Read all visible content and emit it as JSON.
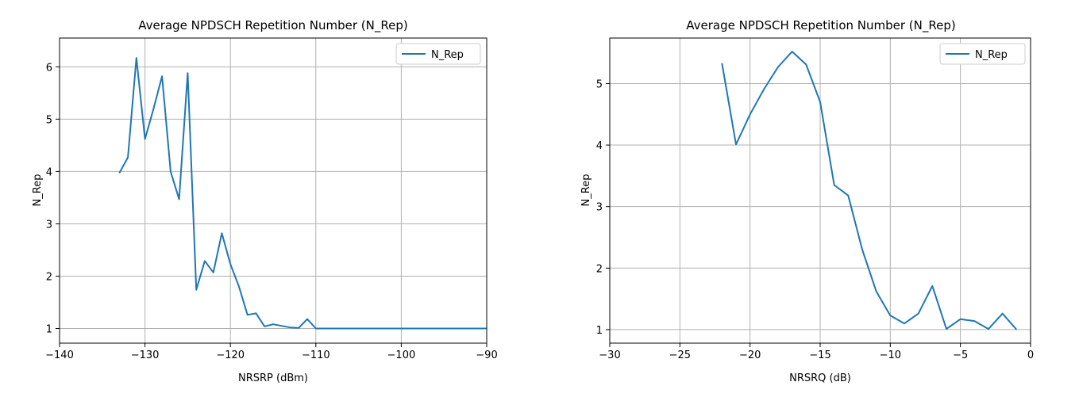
{
  "colors": {
    "series": "#1f77b4",
    "grid": "#b0b0b0"
  },
  "chart_data": [
    {
      "type": "line",
      "title": "Average NPDSCH Repetition Number (N_Rep)",
      "xlabel": "NRSRP (dBm)",
      "ylabel": "N_Rep",
      "xlim": [
        -140,
        -90
      ],
      "ylim": [
        0.72,
        6.55
      ],
      "xticks": [
        -140,
        -130,
        -120,
        -110,
        -100,
        -90
      ],
      "xtick_labels": [
        "−140",
        "−130",
        "−120",
        "−110",
        "−100",
        "−90"
      ],
      "yticks": [
        1,
        2,
        3,
        4,
        5,
        6
      ],
      "ytick_labels": [
        "1",
        "2",
        "3",
        "4",
        "5",
        "6"
      ],
      "grid": true,
      "legend_position": "top-right",
      "series": [
        {
          "name": "N_Rep",
          "x": [
            -133,
            -132,
            -131,
            -130,
            -129,
            -128,
            -127,
            -126,
            -125,
            -124,
            -123,
            -122,
            -121,
            -120,
            -119,
            -118,
            -117,
            -116,
            -115,
            -114,
            -113,
            -112,
            -111,
            -110,
            -109,
            -108,
            -107,
            -106,
            -105,
            -104,
            -103,
            -102,
            -101,
            -100,
            -99,
            -98,
            -97,
            -96,
            -95,
            -94,
            -93,
            -92,
            -91,
            -90
          ],
          "values": [
            3.97,
            4.27,
            6.17,
            4.62,
            5.2,
            5.82,
            4.0,
            3.47,
            5.88,
            1.74,
            2.29,
            2.07,
            2.82,
            2.23,
            1.8,
            1.26,
            1.29,
            1.04,
            1.08,
            1.05,
            1.02,
            1.01,
            1.18,
            1.0,
            1.0,
            1.0,
            1.0,
            1.0,
            1.0,
            1.0,
            1.0,
            1.0,
            1.0,
            1.0,
            1.0,
            1.0,
            1.0,
            1.0,
            1.0,
            1.0,
            1.0,
            1.0,
            1.0,
            1.0
          ]
        }
      ]
    },
    {
      "type": "line",
      "title": "Average NPDSCH Repetition Number (N_Rep)",
      "xlabel": "NRSRQ (dB)",
      "ylabel": "N_Rep",
      "xlim": [
        -30,
        0
      ],
      "ylim": [
        0.78,
        5.74
      ],
      "xticks": [
        -30,
        -25,
        -20,
        -15,
        -10,
        -5,
        0
      ],
      "xtick_labels": [
        "−30",
        "−25",
        "−20",
        "−15",
        "−10",
        "−5",
        "0"
      ],
      "yticks": [
        1,
        2,
        3,
        4,
        5
      ],
      "ytick_labels": [
        "1",
        "2",
        "3",
        "4",
        "5"
      ],
      "grid": true,
      "legend_position": "top-right",
      "series": [
        {
          "name": "N_Rep",
          "x": [
            -22,
            -21,
            -20,
            -19,
            -18,
            -17,
            -16,
            -15,
            -14,
            -13,
            -12,
            -11,
            -10,
            -9,
            -8,
            -7,
            -6,
            -5,
            -4,
            -3,
            -2,
            -1
          ],
          "values": [
            5.33,
            4.01,
            4.5,
            4.91,
            5.27,
            5.52,
            5.31,
            4.7,
            3.35,
            3.18,
            2.3,
            1.62,
            1.23,
            1.1,
            1.26,
            1.71,
            1.01,
            1.17,
            1.14,
            1.01,
            1.26,
            1.0
          ]
        }
      ]
    }
  ]
}
